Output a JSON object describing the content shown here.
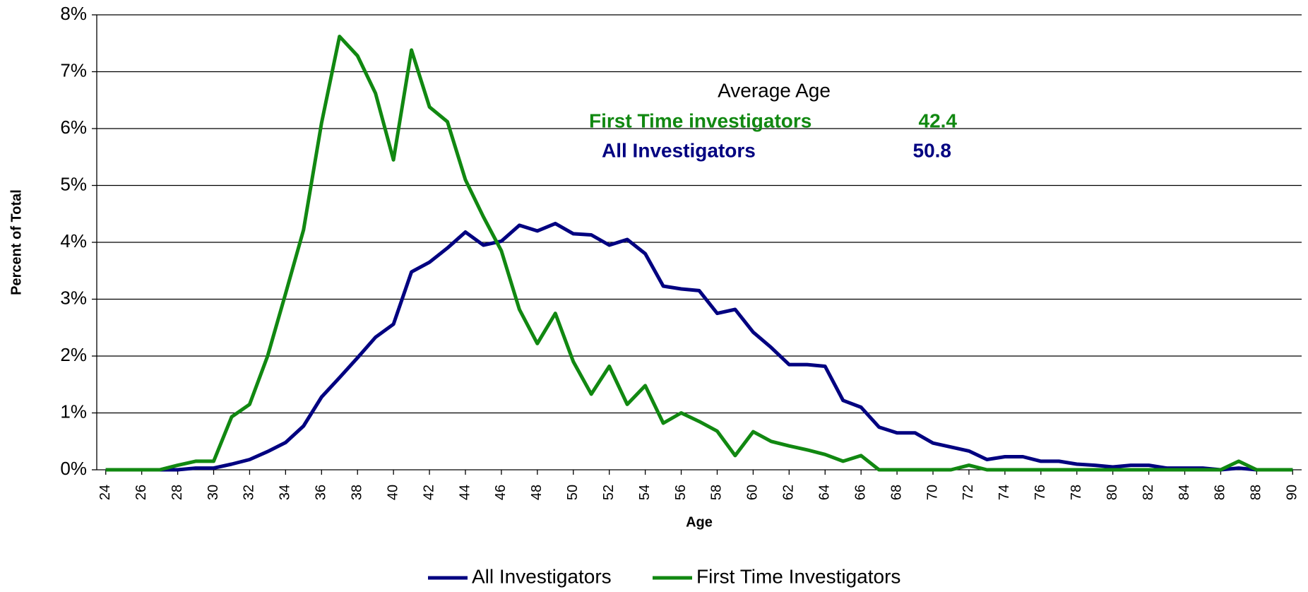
{
  "chart_data": {
    "type": "line",
    "y_label": "Percent of Total",
    "x_label": "Age",
    "x": [
      24,
      25,
      26,
      27,
      28,
      29,
      30,
      31,
      32,
      33,
      34,
      35,
      36,
      37,
      38,
      39,
      40,
      41,
      42,
      43,
      44,
      45,
      46,
      47,
      48,
      49,
      50,
      51,
      52,
      53,
      54,
      55,
      56,
      57,
      58,
      59,
      60,
      61,
      62,
      63,
      64,
      65,
      66,
      67,
      68,
      69,
      70,
      71,
      72,
      73,
      74,
      75,
      76,
      77,
      78,
      79,
      80,
      81,
      82,
      83,
      84,
      85,
      86,
      87,
      88,
      89,
      90
    ],
    "series": [
      {
        "name": "All Investigators",
        "color": "#000080",
        "values": [
          0,
          0,
          0,
          0,
          0,
          0.03,
          0.03,
          0.1,
          0.18,
          0.32,
          0.48,
          0.77,
          1.28,
          1.62,
          1.97,
          2.33,
          2.56,
          3.48,
          3.65,
          3.9,
          4.18,
          3.95,
          4.02,
          4.3,
          4.2,
          4.33,
          4.15,
          4.13,
          3.95,
          4.05,
          3.8,
          3.23,
          3.18,
          3.15,
          2.75,
          2.82,
          2.42,
          2.15,
          1.85,
          1.85,
          1.82,
          1.22,
          1.1,
          0.75,
          0.65,
          0.65,
          0.47,
          0.4,
          0.33,
          0.18,
          0.23,
          0.23,
          0.15,
          0.15,
          0.1,
          0.08,
          0.05,
          0.08,
          0.08,
          0.03,
          0.03,
          0.03,
          0,
          0.03,
          0,
          0,
          0
        ]
      },
      {
        "name": "First Time Investigators",
        "color": "#118811",
        "values": [
          0,
          0,
          0,
          0,
          0.08,
          0.15,
          0.15,
          0.93,
          1.15,
          2.0,
          3.1,
          4.22,
          6.1,
          7.62,
          7.28,
          6.62,
          5.45,
          7.38,
          6.38,
          6.12,
          5.1,
          4.45,
          3.85,
          2.82,
          2.22,
          2.75,
          1.9,
          1.33,
          1.82,
          1.15,
          1.48,
          0.82,
          1.0,
          0.85,
          0.68,
          0.25,
          0.67,
          0.5,
          0.42,
          0.35,
          0.27,
          0.15,
          0.25,
          0,
          0,
          0,
          0,
          0,
          0.08,
          0,
          0,
          0,
          0,
          0,
          0,
          0,
          0,
          0,
          0,
          0,
          0,
          0,
          0,
          0.15,
          0,
          0,
          0
        ]
      }
    ],
    "xlim": [
      23.5,
      90.5
    ],
    "xticks": [
      24,
      26,
      28,
      30,
      32,
      34,
      36,
      38,
      40,
      42,
      44,
      46,
      48,
      50,
      52,
      54,
      56,
      58,
      60,
      62,
      64,
      66,
      68,
      70,
      72,
      74,
      76,
      78,
      80,
      82,
      84,
      86,
      88,
      90
    ],
    "ylim": [
      0,
      8
    ],
    "yticks": [
      {
        "value": 0,
        "label": "0%"
      },
      {
        "value": 1,
        "label": "1%"
      },
      {
        "value": 2,
        "label": "2%"
      },
      {
        "value": 3,
        "label": "3%"
      },
      {
        "value": 4,
        "label": "4%"
      },
      {
        "value": 5,
        "label": "5%"
      },
      {
        "value": 6,
        "label": "6%"
      },
      {
        "value": 7,
        "label": "7%"
      },
      {
        "value": 8,
        "label": "8%"
      }
    ],
    "grid": true,
    "legend": "bottom",
    "annotations": [
      {
        "text": "Average Age",
        "color": "#000000"
      },
      {
        "text": "First Time investigators",
        "color": "#118811"
      },
      {
        "text": "42.4",
        "color": "#118811"
      },
      {
        "text": "All Investigators",
        "color": "#000080"
      },
      {
        "text": "50.8",
        "color": "#000080"
      }
    ]
  }
}
